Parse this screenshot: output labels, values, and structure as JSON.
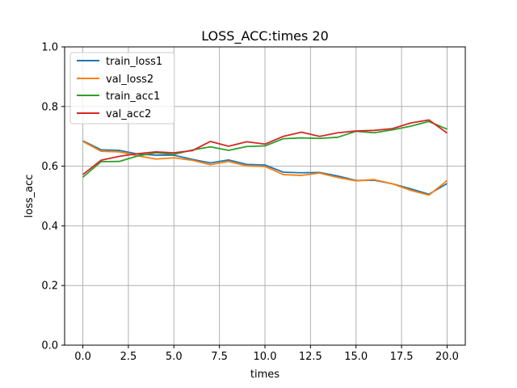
{
  "chart_data": {
    "type": "line",
    "title": "LOSS_ACC:times 20",
    "xlabel": "times",
    "ylabel": "loss_acc",
    "xlim": [
      -1,
      21
    ],
    "ylim": [
      0.0,
      1.0
    ],
    "xticks": [
      0.0,
      2.5,
      5.0,
      7.5,
      10.0,
      12.5,
      15.0,
      17.5,
      20.0
    ],
    "xtick_labels": [
      "0.0",
      "2.5",
      "5.0",
      "7.5",
      "10.0",
      "12.5",
      "15.0",
      "17.5",
      "20.0"
    ],
    "yticks": [
      0.0,
      0.2,
      0.4,
      0.6,
      0.8,
      1.0
    ],
    "ytick_labels": [
      "0.0",
      "0.2",
      "0.4",
      "0.6",
      "0.8",
      "1.0"
    ],
    "grid": true,
    "legend_position": "top-left",
    "x": [
      0,
      1,
      2,
      3,
      4,
      5,
      6,
      7,
      8,
      9,
      10,
      11,
      12,
      13,
      14,
      15,
      16,
      17,
      18,
      19,
      20
    ],
    "series": [
      {
        "name": "train_loss1",
        "color": "#1f77b4",
        "values": [
          0.685,
          0.655,
          0.653,
          0.641,
          0.637,
          0.637,
          0.623,
          0.611,
          0.621,
          0.606,
          0.604,
          0.58,
          0.578,
          0.579,
          0.567,
          0.552,
          0.553,
          0.541,
          0.524,
          0.506,
          0.542
        ]
      },
      {
        "name": "val_loss2",
        "color": "#ff7f0e",
        "values": [
          0.683,
          0.65,
          0.648,
          0.635,
          0.624,
          0.628,
          0.62,
          0.605,
          0.616,
          0.601,
          0.599,
          0.572,
          0.569,
          0.577,
          0.562,
          0.551,
          0.555,
          0.541,
          0.519,
          0.503,
          0.552
        ]
      },
      {
        "name": "train_acc1",
        "color": "#2ca02c",
        "values": [
          0.563,
          0.615,
          0.616,
          0.634,
          0.645,
          0.64,
          0.654,
          0.665,
          0.653,
          0.666,
          0.668,
          0.692,
          0.695,
          0.693,
          0.697,
          0.717,
          0.712,
          0.722,
          0.734,
          0.75,
          0.724
        ]
      },
      {
        "name": "val_acc2",
        "color": "#d62728",
        "values": [
          0.572,
          0.62,
          0.633,
          0.642,
          0.648,
          0.645,
          0.652,
          0.683,
          0.667,
          0.682,
          0.674,
          0.7,
          0.714,
          0.7,
          0.712,
          0.718,
          0.72,
          0.726,
          0.745,
          0.755,
          0.711
        ]
      }
    ]
  }
}
